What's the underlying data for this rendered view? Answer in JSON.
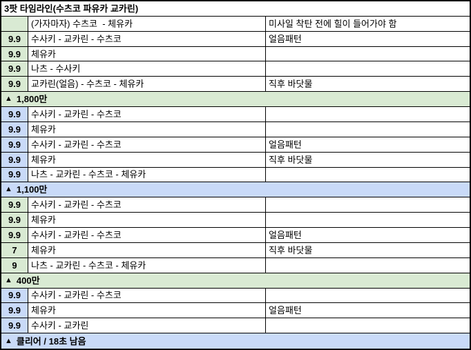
{
  "title": "3팟 타임라인(수츠코 파유카 교카린)",
  "colors": {
    "section_green": "#d9ead3",
    "section_blue": "#c9daf8",
    "border": "#000000",
    "background": "#ffffff",
    "text": "#000000"
  },
  "section_marker": "▲",
  "table": {
    "rows": [
      {
        "type": "data",
        "color": "green",
        "time": "",
        "action": "(가자마자) 수츠코  - 체유카",
        "note": "미사일 착탄 전에 힐이 들어가야 함"
      },
      {
        "type": "data",
        "color": "green",
        "time": "9.9",
        "action": "수사키 - 교카린 - 수츠코",
        "note": "얼음패턴"
      },
      {
        "type": "data",
        "color": "green",
        "time": "9.9",
        "action": "체유카",
        "note": ""
      },
      {
        "type": "data",
        "color": "green",
        "time": "9.9",
        "action": "나츠 - 수사키",
        "note": ""
      },
      {
        "type": "data",
        "color": "green",
        "time": "9.9",
        "action": "교카린(얼음) - 수츠코 - 체유카",
        "note": "직후 바닷물"
      },
      {
        "type": "section",
        "color": "green",
        "label": "1,800만"
      },
      {
        "type": "data",
        "color": "blue",
        "time": "9.9",
        "action": "수사키 - 교카린 - 수츠코",
        "note": ""
      },
      {
        "type": "data",
        "color": "blue",
        "time": "9.9",
        "action": "체유카",
        "note": ""
      },
      {
        "type": "data",
        "color": "blue",
        "time": "9.9",
        "action": "수사키 - 교카린 - 수츠코",
        "note": "얼음패턴"
      },
      {
        "type": "data",
        "color": "blue",
        "time": "9.9",
        "action": "체유카",
        "note": "직후 바닷물"
      },
      {
        "type": "data",
        "color": "blue",
        "time": "9.9",
        "action": "나츠 - 교카린 - 수츠코 - 체유카",
        "note": ""
      },
      {
        "type": "section",
        "color": "blue",
        "label": "1,100만"
      },
      {
        "type": "data",
        "color": "green",
        "time": "9.9",
        "action": "수사키 - 교카린 - 수츠코",
        "note": ""
      },
      {
        "type": "data",
        "color": "green",
        "time": "9.9",
        "action": "체유카",
        "note": ""
      },
      {
        "type": "data",
        "color": "green",
        "time": "9.9",
        "action": "수사키 - 교카린 - 수츠코",
        "note": "얼음패턴"
      },
      {
        "type": "data",
        "color": "green",
        "time": "7",
        "action": "체유카",
        "note": "직후 바닷물"
      },
      {
        "type": "data",
        "color": "green",
        "time": "9",
        "action": "나츠 - 교카린 - 수츠코 - 체유카",
        "note": ""
      },
      {
        "type": "section",
        "color": "green",
        "label": "400만"
      },
      {
        "type": "data",
        "color": "blue",
        "time": "9.9",
        "action": "수사키 - 교카린 - 수츠코",
        "note": ""
      },
      {
        "type": "data",
        "color": "blue",
        "time": "9.9",
        "action": "체유카",
        "note": "얼음패턴"
      },
      {
        "type": "data",
        "color": "blue",
        "time": "9.9",
        "action": "수사키 - 교카린",
        "note": ""
      },
      {
        "type": "section",
        "color": "blue",
        "label": "클리어 / 18초 남음"
      }
    ]
  }
}
